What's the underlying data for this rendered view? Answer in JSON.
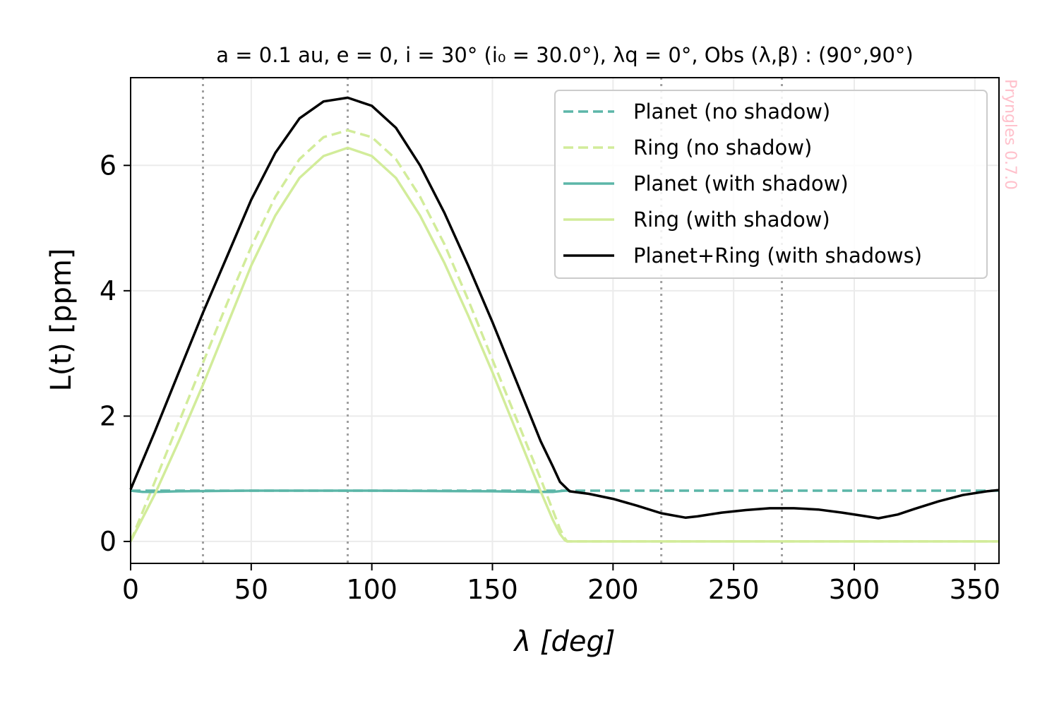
{
  "chart_data": {
    "type": "line",
    "title": "a = 0.1 au, e = 0, i = 30° (i₀ = 30.0°), λq = 0°, Obs (λ,β) : (90°,90°)",
    "xlabel": "λ [deg]",
    "ylabel": "L(t) [ppm]",
    "xlim": [
      0,
      360
    ],
    "ylim": [
      -0.35,
      7.4
    ],
    "xticks": [
      0,
      50,
      100,
      150,
      200,
      250,
      300,
      350
    ],
    "yticks": [
      0,
      2,
      4,
      6
    ],
    "grid": true,
    "legend_position": "upper-right",
    "vlines": [
      30,
      90,
      220,
      270
    ],
    "watermark": "Pryngles 0.7.0",
    "series": [
      {
        "name": "Planet (no shadow)",
        "color": "#5cb6a8",
        "dash": "dashed",
        "x": [
          0,
          360
        ],
        "y": [
          0.81,
          0.81
        ]
      },
      {
        "name": "Ring (no shadow)",
        "color": "#d2ec9a",
        "dash": "dashed",
        "x": [
          0,
          10,
          20,
          30,
          40,
          50,
          60,
          70,
          80,
          90,
          100,
          110,
          120,
          130,
          140,
          150,
          160,
          170,
          175,
          178,
          180,
          181,
          190,
          200,
          250,
          300,
          360
        ],
        "y": [
          0.0,
          0.95,
          1.9,
          2.85,
          3.8,
          4.7,
          5.5,
          6.1,
          6.45,
          6.56,
          6.45,
          6.1,
          5.5,
          4.75,
          3.85,
          2.9,
          1.95,
          1.0,
          0.5,
          0.2,
          0.05,
          0.0,
          0.0,
          0.0,
          0.0,
          0.0,
          0.0
        ]
      },
      {
        "name": "Planet (with shadow)",
        "color": "#5cb6a8",
        "dash": "solid",
        "x": [
          0,
          5,
          10,
          20,
          50,
          100,
          150,
          170,
          175,
          180
        ],
        "y": [
          0.81,
          0.79,
          0.79,
          0.8,
          0.81,
          0.81,
          0.8,
          0.79,
          0.79,
          0.81
        ]
      },
      {
        "name": "Ring (with shadow)",
        "color": "#d2ec9a",
        "dash": "solid",
        "x": [
          0,
          10,
          20,
          30,
          40,
          50,
          60,
          70,
          80,
          90,
          100,
          110,
          120,
          130,
          140,
          150,
          160,
          170,
          175,
          178,
          180,
          181,
          190,
          200,
          250,
          300,
          360
        ],
        "y": [
          0.0,
          0.75,
          1.6,
          2.5,
          3.45,
          4.4,
          5.2,
          5.8,
          6.15,
          6.28,
          6.15,
          5.8,
          5.2,
          4.45,
          3.6,
          2.7,
          1.75,
          0.8,
          0.35,
          0.12,
          0.02,
          0.0,
          0.0,
          0.0,
          0.0,
          0.0,
          0.0
        ]
      },
      {
        "name": "Planet+Ring (with shadows)",
        "color": "#000000",
        "dash": "solid",
        "x": [
          0,
          10,
          20,
          30,
          40,
          50,
          60,
          70,
          80,
          90,
          100,
          110,
          120,
          130,
          140,
          150,
          160,
          170,
          175,
          178,
          182,
          190,
          200,
          210,
          220,
          230,
          235,
          245,
          255,
          265,
          275,
          285,
          295,
          305,
          310,
          318,
          325,
          335,
          345,
          355,
          360
        ],
        "y": [
          0.83,
          1.75,
          2.7,
          3.65,
          4.55,
          5.45,
          6.2,
          6.75,
          7.02,
          7.08,
          6.95,
          6.6,
          6.0,
          5.25,
          4.4,
          3.5,
          2.55,
          1.6,
          1.2,
          0.95,
          0.8,
          0.76,
          0.68,
          0.57,
          0.45,
          0.38,
          0.4,
          0.46,
          0.5,
          0.53,
          0.53,
          0.51,
          0.46,
          0.4,
          0.37,
          0.43,
          0.52,
          0.64,
          0.74,
          0.8,
          0.82
        ]
      }
    ]
  }
}
